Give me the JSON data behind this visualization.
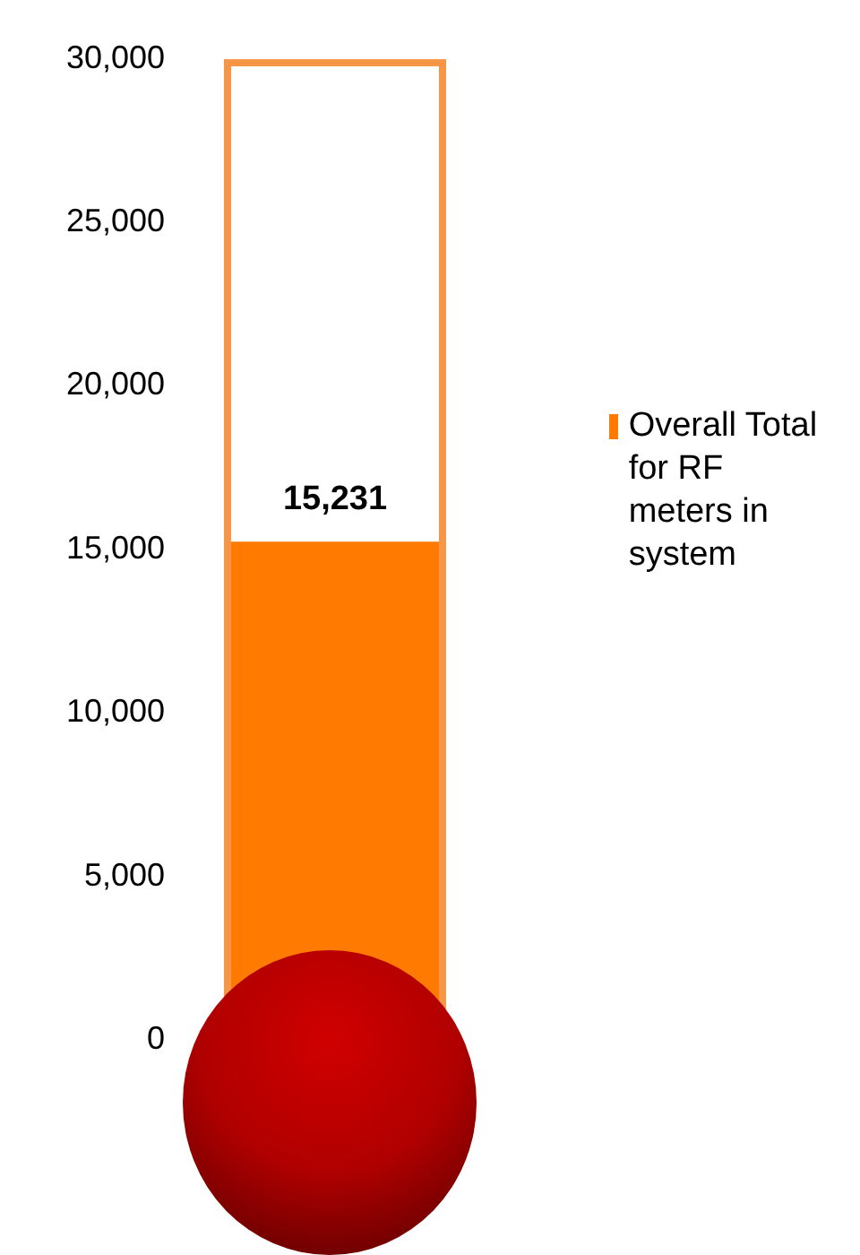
{
  "chart_data": {
    "type": "bar",
    "categories": [
      null
    ],
    "series": [
      {
        "name": "Overall Total for RF meters in system",
        "color": "#ff7a00",
        "values": [
          15231
        ]
      }
    ],
    "ylim": [
      0,
      30000
    ],
    "yticks": [
      {
        "value": 0,
        "label": "0"
      },
      {
        "value": 5000,
        "label": "5,000"
      },
      {
        "value": 10000,
        "label": "10,000"
      },
      {
        "value": 15000,
        "label": "15,000"
      },
      {
        "value": 20000,
        "label": "20,000"
      },
      {
        "value": 25000,
        "label": "25,000"
      },
      {
        "value": 30000,
        "label": "30,000"
      }
    ],
    "value_labels": [
      "15,231"
    ],
    "grid": false,
    "legend": "right"
  }
}
